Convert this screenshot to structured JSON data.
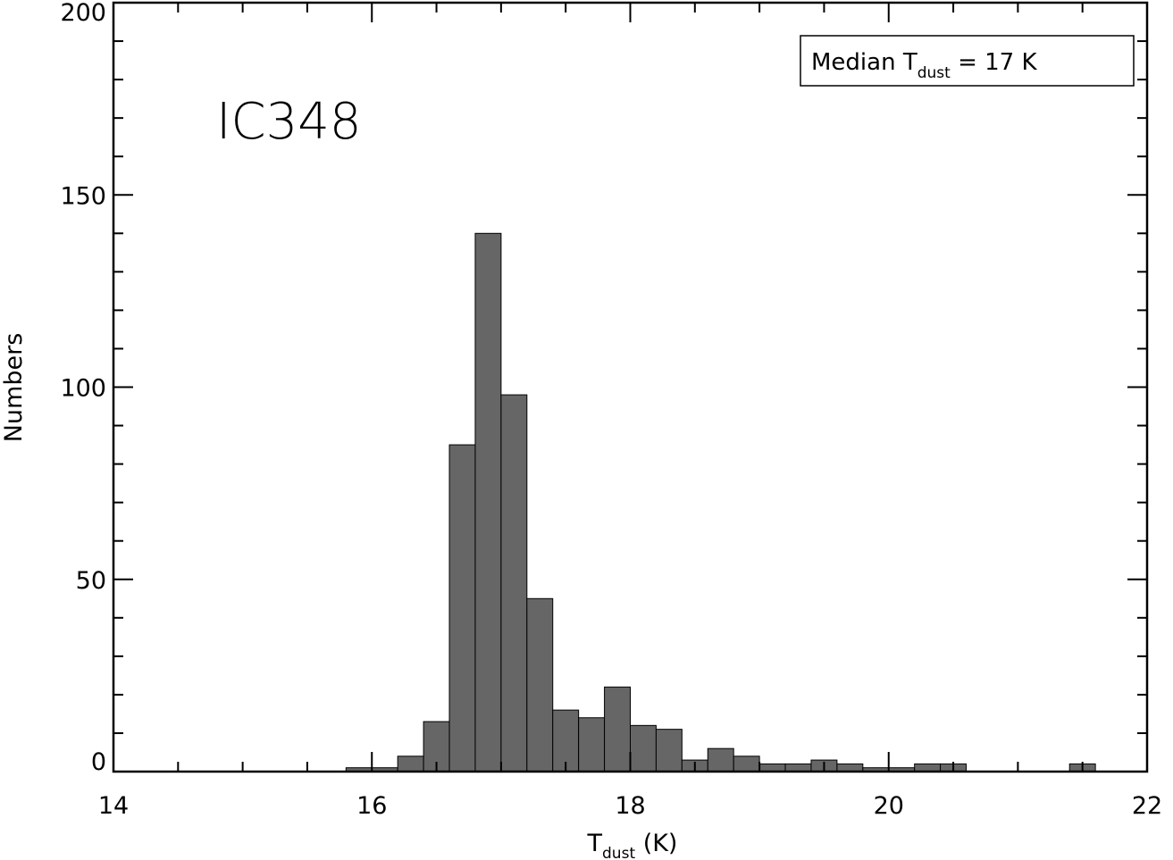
{
  "chart_data": {
    "type": "bar",
    "region_label": "IC348",
    "legend_text": {
      "prefix": "Median T",
      "subscript": "dust",
      "suffix": " = 17 K"
    },
    "xlabel": {
      "prefix": "T",
      "subscript": "dust",
      "suffix": " (K)"
    },
    "ylabel": "Numbers",
    "xlim": [
      14,
      22
    ],
    "ylim": [
      0,
      200
    ],
    "x_ticks": [
      14,
      16,
      18,
      20,
      22
    ],
    "y_ticks": [
      0,
      50,
      100,
      150,
      200
    ],
    "bin_width": 0.2,
    "bins": [
      {
        "x": 15.8,
        "count": 1
      },
      {
        "x": 16.0,
        "count": 1
      },
      {
        "x": 16.2,
        "count": 4
      },
      {
        "x": 16.4,
        "count": 13
      },
      {
        "x": 16.6,
        "count": 85
      },
      {
        "x": 16.8,
        "count": 140
      },
      {
        "x": 17.0,
        "count": 98
      },
      {
        "x": 17.2,
        "count": 45
      },
      {
        "x": 17.4,
        "count": 16
      },
      {
        "x": 17.6,
        "count": 14
      },
      {
        "x": 17.8,
        "count": 22
      },
      {
        "x": 18.0,
        "count": 12
      },
      {
        "x": 18.2,
        "count": 11
      },
      {
        "x": 18.4,
        "count": 3
      },
      {
        "x": 18.6,
        "count": 6
      },
      {
        "x": 18.8,
        "count": 4
      },
      {
        "x": 19.0,
        "count": 2
      },
      {
        "x": 19.2,
        "count": 2
      },
      {
        "x": 19.4,
        "count": 3
      },
      {
        "x": 19.6,
        "count": 2
      },
      {
        "x": 19.8,
        "count": 1
      },
      {
        "x": 20.0,
        "count": 1
      },
      {
        "x": 20.2,
        "count": 2
      },
      {
        "x": 20.4,
        "count": 2
      },
      {
        "x": 21.4,
        "count": 2
      }
    ],
    "bar_color": "#666666",
    "grid": false
  }
}
